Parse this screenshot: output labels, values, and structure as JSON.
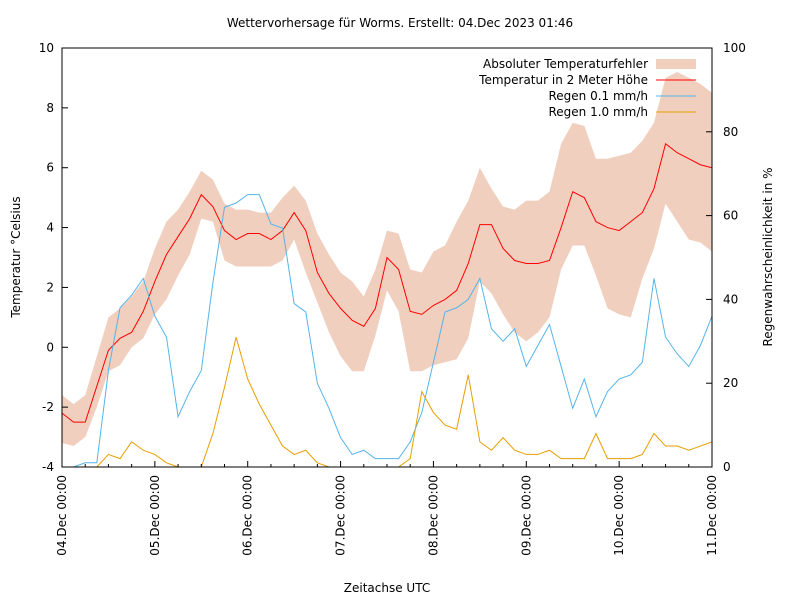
{
  "chart_data": {
    "type": "line",
    "title": "Wettervorhersage für Worms. Erstellt: 04.Dec 2023 01:46",
    "xlabel": "Zeitachse UTC",
    "ylabel": "Temperatur °Celsius",
    "y2label": "Regenwahrscheinlichkeit in %",
    "xlim": [
      "2023-12-04T00:00",
      "2023-12-11T00:00"
    ],
    "ylim": [
      -4,
      10
    ],
    "y2lim": [
      0,
      100
    ],
    "grid": false,
    "legend_position": "top-right",
    "x_tick_labels": [
      "04.Dec 00:00",
      "05.Dec 00:00",
      "06.Dec 00:00",
      "07.Dec 00:00",
      "08.Dec 00:00",
      "09.Dec 00:00",
      "10.Dec 00:00",
      "11.Dec 00:00"
    ],
    "y_tick_labels": [
      "-4",
      "-2",
      "0",
      "2",
      "4",
      "6",
      "8",
      "10"
    ],
    "y2_tick_labels": [
      "0",
      "20",
      "40",
      "60",
      "80",
      "100"
    ],
    "x": [
      "2023-12-04T00:00",
      "2023-12-04T03:00",
      "2023-12-04T06:00",
      "2023-12-04T09:00",
      "2023-12-04T12:00",
      "2023-12-04T15:00",
      "2023-12-04T18:00",
      "2023-12-04T21:00",
      "2023-12-05T00:00",
      "2023-12-05T03:00",
      "2023-12-05T06:00",
      "2023-12-05T09:00",
      "2023-12-05T12:00",
      "2023-12-05T15:00",
      "2023-12-05T18:00",
      "2023-12-05T21:00",
      "2023-12-06T00:00",
      "2023-12-06T03:00",
      "2023-12-06T06:00",
      "2023-12-06T09:00",
      "2023-12-06T12:00",
      "2023-12-06T15:00",
      "2023-12-06T18:00",
      "2023-12-06T21:00",
      "2023-12-07T00:00",
      "2023-12-07T03:00",
      "2023-12-07T06:00",
      "2023-12-07T09:00",
      "2023-12-07T12:00",
      "2023-12-07T15:00",
      "2023-12-07T18:00",
      "2023-12-07T21:00",
      "2023-12-08T00:00",
      "2023-12-08T03:00",
      "2023-12-08T06:00",
      "2023-12-08T09:00",
      "2023-12-08T12:00",
      "2023-12-08T15:00",
      "2023-12-08T18:00",
      "2023-12-08T21:00",
      "2023-12-09T00:00",
      "2023-12-09T03:00",
      "2023-12-09T06:00",
      "2023-12-09T09:00",
      "2023-12-09T12:00",
      "2023-12-09T15:00",
      "2023-12-09T18:00",
      "2023-12-09T21:00",
      "2023-12-10T00:00",
      "2023-12-10T03:00",
      "2023-12-10T06:00",
      "2023-12-10T09:00",
      "2023-12-10T12:00",
      "2023-12-10T15:00",
      "2023-12-10T18:00",
      "2023-12-10T21:00",
      "2023-12-11T00:00"
    ],
    "band": {
      "name": "Absoluter Temperaturfehler",
      "color": "#f0cfbf",
      "axis": "y",
      "upper": [
        -1.6,
        -1.9,
        -1.6,
        -0.3,
        1.0,
        1.3,
        1.7,
        2.2,
        3.3,
        4.2,
        4.6,
        5.2,
        5.9,
        5.6,
        4.8,
        4.6,
        4.6,
        4.5,
        4.5,
        5.0,
        5.4,
        4.9,
        3.8,
        3.1,
        2.5,
        2.2,
        1.7,
        2.6,
        3.9,
        3.8,
        2.6,
        2.5,
        3.2,
        3.4,
        4.2,
        4.9,
        6.0,
        5.3,
        4.7,
        4.6,
        4.9,
        4.9,
        5.2,
        6.8,
        7.5,
        7.4,
        6.3,
        6.3,
        6.4,
        6.5,
        6.9,
        7.5,
        9.0,
        9.2,
        9.0,
        8.8,
        8.5
      ],
      "lower": [
        -3.2,
        -3.3,
        -3.0,
        -2.0,
        -0.8,
        -0.6,
        0.0,
        0.3,
        1.1,
        1.6,
        2.4,
        3.1,
        4.3,
        4.2,
        2.9,
        2.7,
        2.7,
        2.7,
        2.7,
        2.9,
        3.6,
        2.5,
        1.5,
        0.5,
        -0.3,
        -0.8,
        -0.8,
        0.4,
        1.9,
        1.2,
        -0.8,
        -0.8,
        -0.6,
        -0.5,
        -0.4,
        0.3,
        2.2,
        1.8,
        1.1,
        0.5,
        0.2,
        0.5,
        1.0,
        2.6,
        3.4,
        3.4,
        2.4,
        1.3,
        1.1,
        1.0,
        2.3,
        3.3,
        4.8,
        4.2,
        3.6,
        3.5,
        3.2
      ]
    },
    "series": [
      {
        "name": "Temperatur in 2 Meter Höhe",
        "color": "#ff0000",
        "axis": "y",
        "values": [
          -2.2,
          -2.5,
          -2.5,
          -1.3,
          -0.1,
          0.3,
          0.5,
          1.2,
          2.2,
          3.1,
          3.7,
          4.3,
          5.1,
          4.7,
          3.9,
          3.6,
          3.8,
          3.8,
          3.6,
          3.9,
          4.5,
          3.9,
          2.5,
          1.8,
          1.3,
          0.9,
          0.7,
          1.3,
          3.0,
          2.6,
          1.2,
          1.1,
          1.4,
          1.6,
          1.9,
          2.8,
          4.1,
          4.1,
          3.3,
          2.9,
          2.8,
          2.8,
          2.9,
          4.0,
          5.2,
          5.0,
          4.2,
          4.0,
          3.9,
          4.2,
          4.5,
          5.3,
          6.8,
          6.5,
          6.3,
          6.1,
          6.0
        ]
      },
      {
        "name": "Regen 0.1 mm/h",
        "color": "#56b4e9",
        "axis": "y2",
        "values": [
          0,
          0,
          1,
          1,
          23,
          38,
          41,
          45,
          36,
          31,
          12,
          18,
          23,
          44,
          62,
          63,
          65,
          65,
          58,
          57,
          39,
          37,
          20,
          14,
          7,
          3,
          4,
          2,
          2,
          2,
          6,
          13,
          25,
          37,
          38,
          40,
          45,
          33,
          30,
          33,
          24,
          29,
          34,
          24,
          14,
          21,
          12,
          18,
          21,
          22,
          25,
          45,
          31,
          27,
          24,
          29,
          36
        ]
      },
      {
        "name": "Regen 1.0 mm/h",
        "color": "#e69f00",
        "axis": "y2",
        "values": [
          0,
          0,
          0,
          0,
          3,
          2,
          6,
          4,
          3,
          1,
          0,
          0,
          0,
          8,
          19,
          31,
          21,
          15,
          10,
          5,
          3,
          4,
          1,
          0,
          0,
          0,
          0,
          0,
          0,
          0,
          2,
          18,
          13,
          10,
          9,
          22,
          6,
          4,
          7,
          4,
          3,
          3,
          4,
          2,
          2,
          2,
          8,
          2,
          2,
          2,
          3,
          8,
          5,
          5,
          4,
          5,
          6
        ]
      }
    ]
  }
}
